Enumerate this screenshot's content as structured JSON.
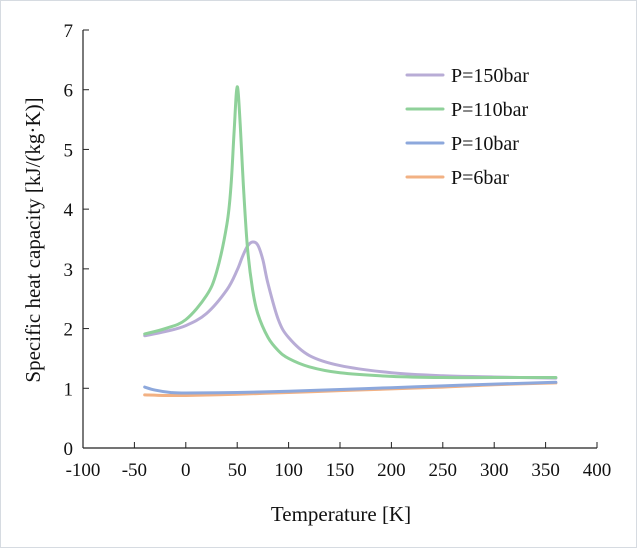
{
  "chart_data": {
    "type": "line",
    "xlabel": "Temperature [K]",
    "ylabel": "Specific heat capacity [kJ/(kg·K)]",
    "xlim": [
      -100,
      400
    ],
    "ylim": [
      0,
      7
    ],
    "xticks": [
      -100,
      -50,
      0,
      50,
      100,
      150,
      200,
      250,
      300,
      350,
      400
    ],
    "yticks": [
      0,
      1,
      2,
      3,
      4,
      5,
      6,
      7
    ],
    "xtick_labels": [
      "-100",
      "-50",
      "0",
      "50",
      "100",
      "150",
      "200",
      "250",
      "300",
      "350",
      "400"
    ],
    "ytick_labels": [
      "0",
      "1",
      "2",
      "3",
      "4",
      "5",
      "6",
      "7"
    ],
    "grid": false,
    "legend_position": "top-right",
    "series": [
      {
        "name": "P=150bar",
        "color": "#b8acd6",
        "x": [
          -40,
          -20,
          0,
          20,
          40,
          50,
          55,
          60,
          65,
          70,
          75,
          80,
          90,
          100,
          120,
          150,
          200,
          250,
          300,
          360
        ],
        "y": [
          1.88,
          1.95,
          2.05,
          2.25,
          2.65,
          2.98,
          3.2,
          3.38,
          3.45,
          3.4,
          3.15,
          2.75,
          2.15,
          1.85,
          1.55,
          1.38,
          1.26,
          1.21,
          1.19,
          1.17
        ]
      },
      {
        "name": "P=110bar",
        "color": "#8fd19a",
        "x": [
          -40,
          -20,
          0,
          20,
          30,
          40,
          44,
          47,
          50,
          53,
          56,
          60,
          65,
          70,
          80,
          90,
          100,
          120,
          150,
          200,
          250,
          300,
          360
        ],
        "y": [
          1.91,
          2.0,
          2.15,
          2.55,
          2.95,
          3.75,
          4.4,
          5.3,
          6.05,
          5.4,
          4.4,
          3.35,
          2.65,
          2.25,
          1.85,
          1.63,
          1.5,
          1.36,
          1.26,
          1.2,
          1.18,
          1.18,
          1.18
        ]
      },
      {
        "name": "P=10bar",
        "color": "#8da8dc",
        "x": [
          -40,
          -30,
          -15,
          0,
          50,
          100,
          150,
          200,
          250,
          300,
          360
        ],
        "y": [
          1.02,
          0.97,
          0.93,
          0.92,
          0.93,
          0.95,
          0.98,
          1.01,
          1.04,
          1.07,
          1.1
        ]
      },
      {
        "name": "P=6bar",
        "color": "#f2b183",
        "x": [
          -40,
          -20,
          0,
          50,
          100,
          150,
          200,
          250,
          300,
          360
        ],
        "y": [
          0.89,
          0.88,
          0.88,
          0.9,
          0.93,
          0.96,
          0.99,
          1.02,
          1.06,
          1.09
        ]
      }
    ]
  }
}
